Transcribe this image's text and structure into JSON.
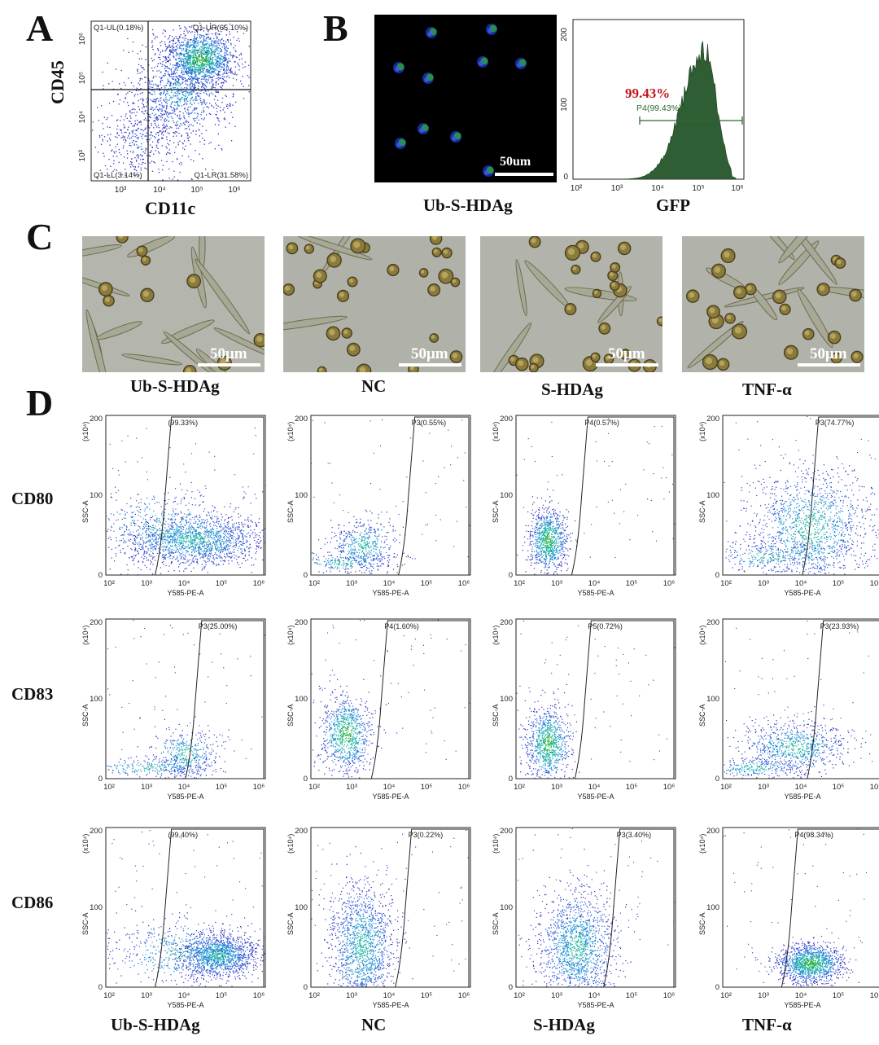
{
  "panels": {
    "A": "A",
    "B": "B",
    "C": "C",
    "D": "D"
  },
  "panel_a": {
    "xlabel": "CD11c",
    "ylabel": "CD45",
    "quadrants": {
      "ul": "Q1-UL(0.18%)",
      "ur": "Q1-UR(65.10%)",
      "ll": "Q1-LL(3.14%)",
      "lr": "Q1-LR(31.58%)"
    },
    "xticks": [
      "10³",
      "10⁴",
      "10⁵",
      "10⁶"
    ],
    "yticks": [
      "10⁶",
      "10⁵",
      "10⁴",
      "10³"
    ]
  },
  "panel_b": {
    "image_label": "Ub-S-HDAg",
    "scale_bar": "50um",
    "histogram_xlabel": "GFP",
    "big_percent": "99.43%",
    "gate_label": "P4(99.43%)",
    "xticks": [
      "10²",
      "10³",
      "10⁴",
      "10⁵",
      "10⁶"
    ],
    "yticks": [
      "200",
      "100",
      "0"
    ]
  },
  "panel_c": {
    "scale_bar": "50μm",
    "labels": [
      "Ub-S-HDAg",
      "NC",
      "S-HDAg",
      "TNF-α"
    ]
  },
  "panel_d": {
    "row_labels": [
      "CD80",
      "CD83",
      "CD86"
    ],
    "col_labels": [
      "Ub-S-HDAg",
      "NC",
      "S-HDAg",
      "TNF-α"
    ],
    "ylabel": "SSC-A",
    "yunit": "(x10⁴)",
    "xlabel": "Y585-PE-A",
    "yticks": [
      "200",
      "100",
      "0"
    ],
    "xticks_a": [
      "10²",
      "10³",
      "10⁴",
      "10⁵",
      "10⁶"
    ],
    "gates": [
      [
        "(99.33%)",
        "P3(0.55%)",
        "P4(0.57%)",
        "P3(74.77%)"
      ],
      [
        "P3(25.00%)",
        "P4(1.60%)",
        "P5(0.72%)",
        "P3(23.93%)"
      ],
      [
        "(99.40%)",
        "P3(0.22%)",
        "P3(3.40%)",
        "P4(98.34%)"
      ]
    ]
  },
  "chart_data": [
    {
      "type": "scatter",
      "xlabel": "CD11c",
      "ylabel": "CD45",
      "x_scale": "log",
      "y_scale": "log",
      "quadrant_gates": {
        "Q1-UL": 0.18,
        "Q1-UR": 65.1,
        "Q1-LL": 3.14,
        "Q1-LR": 31.58
      }
    },
    {
      "type": "area",
      "xlabel": "GFP",
      "x_scale": "log",
      "ylim": [
        0,
        200
      ],
      "gate": {
        "name": "P4",
        "percent": 99.43
      }
    },
    {
      "type": "scatter",
      "xlabel": "Y585-PE-A",
      "ylabel": "SSC-A",
      "ylim": [
        0,
        200
      ],
      "gates_percent": [
        [
          99.33,
          0.55,
          0.57,
          74.77
        ],
        [
          25.0,
          1.6,
          0.72,
          23.93
        ],
        [
          99.4,
          0.22,
          3.4,
          98.34
        ]
      ]
    }
  ],
  "colors": {
    "scatter_dense": "#1aa84a",
    "scatter_mid": "#1fa0c8",
    "scatter_sparse": "#2b2fc0",
    "hist_fill": "#2f5e34",
    "percent_red": "#c0141c"
  }
}
